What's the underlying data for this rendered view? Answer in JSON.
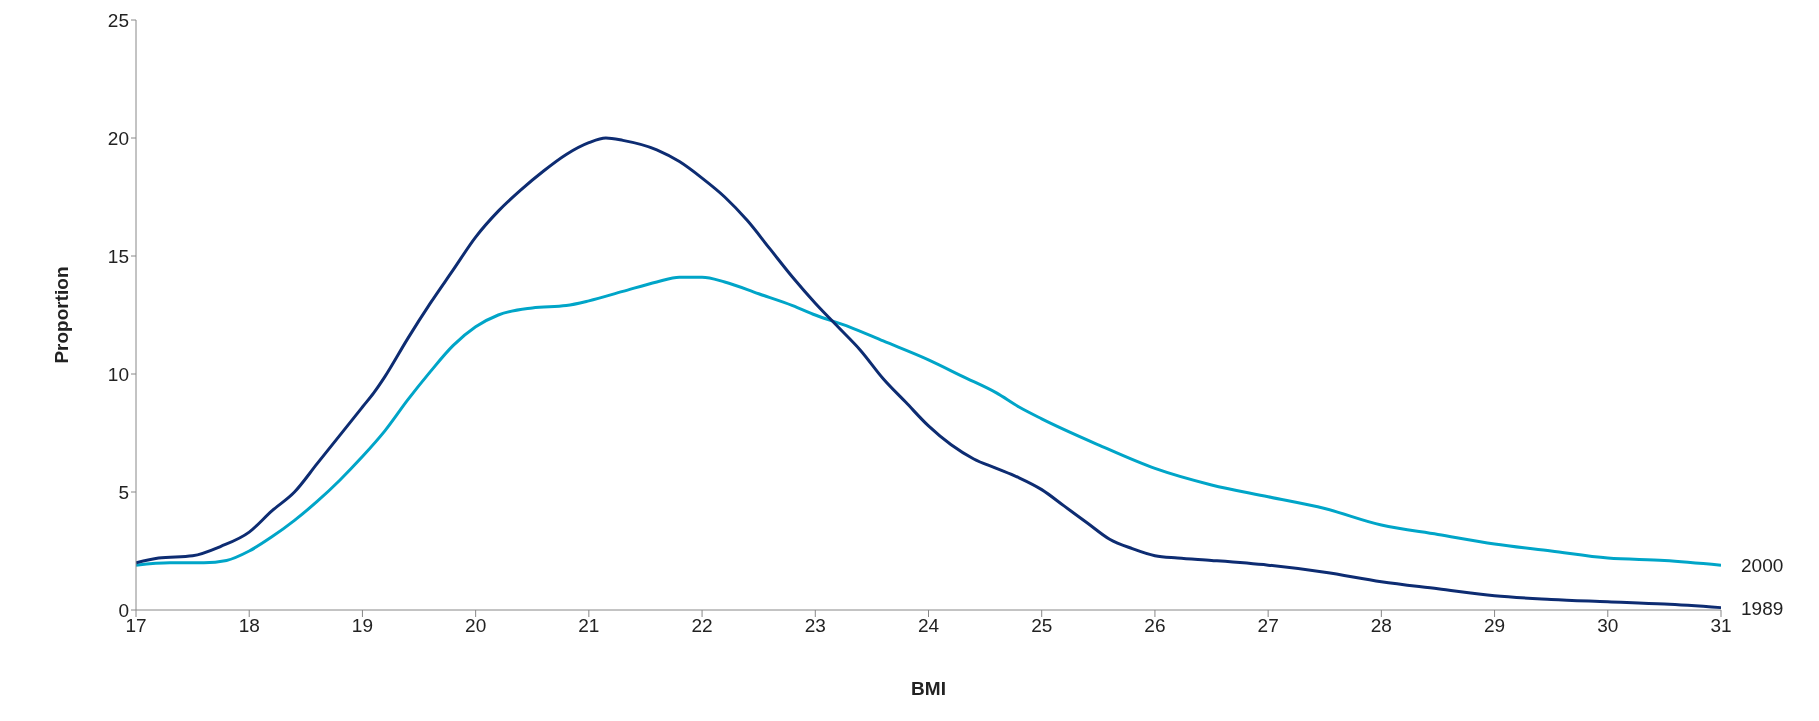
{
  "chart_data": {
    "type": "line",
    "xlabel": "BMI",
    "ylabel": "Proportion",
    "xlim": [
      17,
      31
    ],
    "xticks": [
      17,
      18,
      19,
      20,
      21,
      22,
      23,
      24,
      25,
      26,
      27,
      28,
      29,
      30,
      31
    ],
    "ylim": [
      0,
      25
    ],
    "yticks": [
      0,
      5,
      10,
      15,
      20,
      25
    ],
    "grid": false,
    "legend": false,
    "marker": "none",
    "line_style": "solid",
    "series": [
      {
        "name": "2000",
        "color": "#00a5c8",
        "x": [
          17,
          17.3,
          17.6,
          17.8,
          18,
          18.2,
          18.4,
          18.6,
          18.8,
          19,
          19.2,
          19.4,
          19.6,
          19.8,
          20,
          20.2,
          20.5,
          20.8,
          21,
          21.3,
          21.6,
          21.8,
          22,
          22.2,
          22.5,
          22.8,
          23,
          23.3,
          23.6,
          24,
          24.3,
          24.6,
          24.8,
          25,
          25.5,
          26,
          26.5,
          27,
          27.5,
          28,
          28.5,
          29,
          29.5,
          30,
          30.5,
          31
        ],
        "values": [
          1.9,
          2.0,
          2.0,
          2.1,
          2.5,
          3.1,
          3.8,
          4.6,
          5.5,
          6.5,
          7.6,
          8.9,
          10.1,
          11.2,
          12.0,
          12.5,
          12.8,
          12.9,
          13.1,
          13.5,
          13.9,
          14.1,
          14.1,
          13.9,
          13.4,
          12.9,
          12.5,
          12.0,
          11.4,
          10.6,
          9.9,
          9.2,
          8.6,
          8.1,
          7.0,
          6.0,
          5.3,
          4.8,
          4.3,
          3.6,
          3.2,
          2.8,
          2.5,
          2.2,
          2.1,
          1.9
        ]
      },
      {
        "name": "1989",
        "color": "#0d2c72",
        "x": [
          17,
          17.2,
          17.5,
          17.75,
          18,
          18.2,
          18.4,
          18.6,
          18.8,
          19,
          19.1,
          19.2,
          19.4,
          19.6,
          19.8,
          20,
          20.2,
          20.4,
          20.6,
          20.8,
          21,
          21.15,
          21.3,
          21.6,
          21.8,
          22,
          22.2,
          22.4,
          22.6,
          22.8,
          23,
          23.2,
          23.4,
          23.6,
          23.8,
          24,
          24.2,
          24.4,
          24.6,
          24.8,
          25,
          25.2,
          25.4,
          25.6,
          25.8,
          26,
          26.2,
          26.5,
          27,
          27.5,
          28,
          28.5,
          29,
          29.5,
          30,
          30.5,
          31
        ],
        "values": [
          2.0,
          2.2,
          2.3,
          2.7,
          3.3,
          4.2,
          5.0,
          6.2,
          7.4,
          8.6,
          9.2,
          9.9,
          11.5,
          13.0,
          14.4,
          15.8,
          16.9,
          17.8,
          18.6,
          19.3,
          19.8,
          20.0,
          19.9,
          19.5,
          19.0,
          18.3,
          17.5,
          16.5,
          15.3,
          14.1,
          13.0,
          12.0,
          11.0,
          9.8,
          8.8,
          7.8,
          7.0,
          6.4,
          6.0,
          5.6,
          5.1,
          4.4,
          3.7,
          3.0,
          2.6,
          2.3,
          2.2,
          2.1,
          1.9,
          1.6,
          1.2,
          0.9,
          0.6,
          0.45,
          0.35,
          0.25,
          0.1
        ]
      }
    ]
  }
}
